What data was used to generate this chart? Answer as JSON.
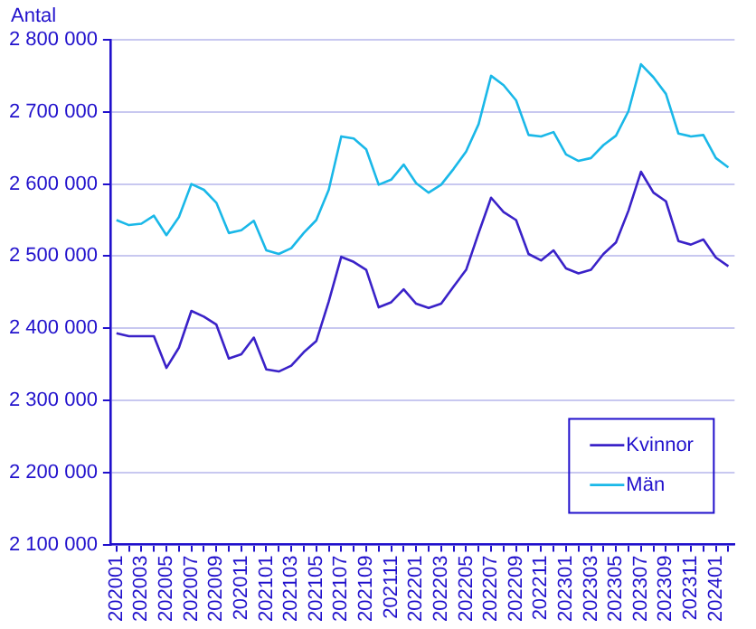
{
  "chart_data": {
    "type": "line",
    "ylabel": "Antal",
    "categories": [
      "202001",
      null,
      "202003",
      null,
      "202005",
      null,
      "202007",
      null,
      "202009",
      null,
      "202011",
      null,
      "202101",
      null,
      "202103",
      null,
      "202105",
      null,
      "202107",
      null,
      "202109",
      null,
      "202111",
      null,
      "202201",
      null,
      "202203",
      null,
      "202205",
      null,
      "202207",
      null,
      "202209",
      null,
      "202211",
      null,
      "202301",
      null,
      "202303",
      null,
      "202305",
      null,
      "202307",
      null,
      "202309",
      null,
      "202311",
      null,
      "202401",
      null
    ],
    "series": [
      {
        "name": "Kvinnor",
        "color": "#3a22c8",
        "values": [
          2393000,
          2389000,
          2389000,
          2389000,
          2345000,
          2373000,
          2424000,
          2416000,
          2405000,
          2358000,
          2364000,
          2387000,
          2343000,
          2340000,
          2348000,
          2367000,
          2382000,
          2437000,
          2499000,
          2492000,
          2481000,
          2429000,
          2436000,
          2454000,
          2434000,
          2428000,
          2434000,
          2458000,
          2481000,
          2532000,
          2581000,
          2561000,
          2550000,
          2503000,
          2494000,
          2508000,
          2483000,
          2476000,
          2481000,
          2503000,
          2519000,
          2563000,
          2617000,
          2588000,
          2576000,
          2521000,
          2516000,
          2523000,
          2498000,
          2486000
        ]
      },
      {
        "name": "Män",
        "color": "#1ab8e8",
        "values": [
          2550000,
          2543000,
          2545000,
          2556000,
          2529000,
          2554000,
          2600000,
          2592000,
          2574000,
          2532000,
          2536000,
          2549000,
          2508000,
          2503000,
          2511000,
          2532000,
          2550000,
          2592000,
          2666000,
          2663000,
          2648000,
          2599000,
          2606000,
          2627000,
          2601000,
          2588000,
          2599000,
          2621000,
          2645000,
          2683000,
          2750000,
          2737000,
          2716000,
          2668000,
          2666000,
          2672000,
          2641000,
          2632000,
          2636000,
          2654000,
          2667000,
          2701000,
          2766000,
          2748000,
          2725000,
          2670000,
          2666000,
          2668000,
          2636000,
          2623000
        ]
      }
    ],
    "ylim": [
      2100000,
      2800000
    ],
    "yticks": [
      {
        "value": 2100000,
        "label": "2 100 000"
      },
      {
        "value": 2200000,
        "label": "2 200 000"
      },
      {
        "value": 2300000,
        "label": "2 300 000"
      },
      {
        "value": 2400000,
        "label": "2 400 000"
      },
      {
        "value": 2500000,
        "label": "2 500 000"
      },
      {
        "value": 2600000,
        "label": "2 600 000"
      },
      {
        "value": 2700000,
        "label": "2 700 000"
      },
      {
        "value": 2800000,
        "label": "2 800 000"
      }
    ],
    "grid": "y",
    "legend": "bottom right",
    "marker": "none",
    "line_style": "solid"
  }
}
